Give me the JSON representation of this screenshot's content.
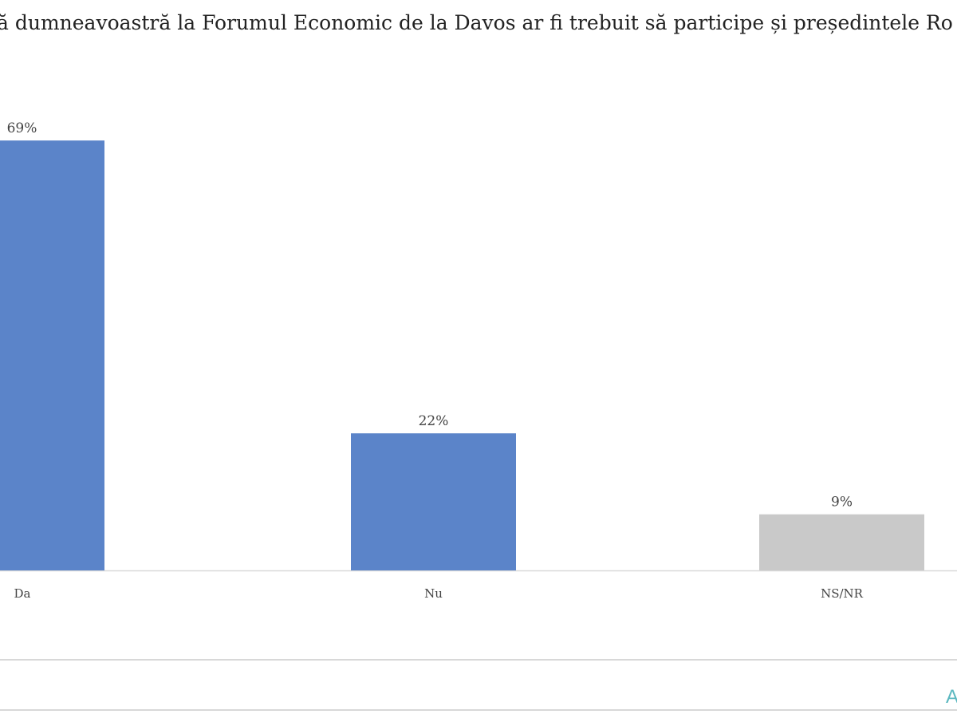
{
  "chart_data": {
    "type": "bar",
    "title": "ă dumneavoastră la Forumul Economic de la Davos ar fi trebuit să participe și președintele Ro",
    "categories": [
      "Da",
      "Nu",
      "NS/NR"
    ],
    "values": [
      69,
      22,
      9
    ],
    "data_labels": [
      "69%",
      "22%",
      "9%"
    ],
    "colors": [
      "#5b84c9",
      "#5b84c9",
      "#c9c9c9"
    ],
    "xlabel": "",
    "ylabel": "",
    "ylim": [
      0,
      100
    ],
    "grid": false,
    "legend": "none"
  },
  "footer": {
    "logo_text": "A"
  }
}
